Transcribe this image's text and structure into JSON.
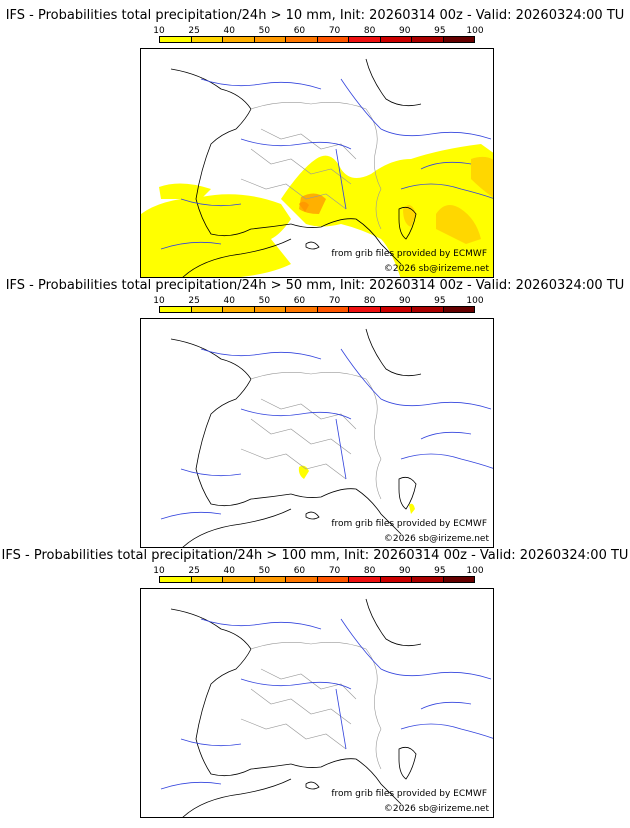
{
  "legend": {
    "labels": [
      "10",
      "25",
      "40",
      "50",
      "60",
      "70",
      "80",
      "90",
      "95",
      "100"
    ],
    "colors": [
      "#ffff00",
      "#ffd700",
      "#ffb000",
      "#ff9900",
      "#ff7700",
      "#ff5500",
      "#ee1111",
      "#cc0000",
      "#aa0000",
      "#660000"
    ]
  },
  "panels": [
    {
      "title": "IFS - Probabilities total precipitation/24h > 10 mm, Init: 20260314 00z - Valid: 20260324:00 TU",
      "credit_grib": "from grib files provided by ECMWF",
      "credit_copy": "©2026 sb@irizeme.net"
    },
    {
      "title": "IFS - Probabilities total precipitation/24h > 50 mm, Init: 20260314 00z - Valid: 20260324:00 TU",
      "credit_grib": "from grib files provided by ECMWF",
      "credit_copy": "©2026 sb@irizeme.net"
    },
    {
      "title": "IFS - Probabilities total precipitation/24h > 100 mm, Init: 20260314 00z - Valid: 20260324:00 TU",
      "credit_grib": "from grib files provided by ECMWF",
      "credit_copy": "©2026 sb@irizeme.net"
    }
  ]
}
